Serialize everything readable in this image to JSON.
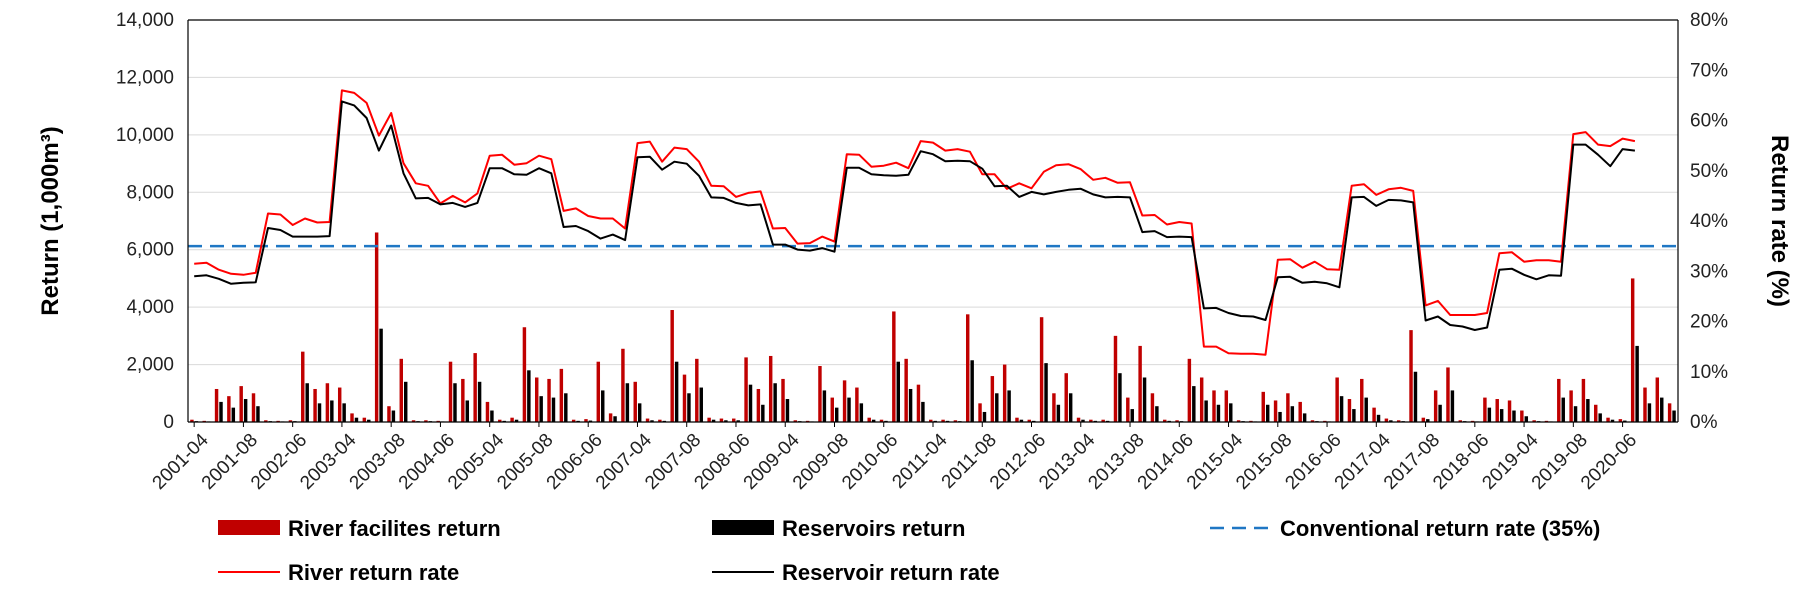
{
  "chart_data": {
    "type": "bar",
    "x_tick_labels": [
      "2001-04",
      "2001-08",
      "2002-06",
      "2003-04",
      "2003-08",
      "2004-06",
      "2005-04",
      "2005-08",
      "2006-06",
      "2007-04",
      "2007-08",
      "2008-06",
      "2009-04",
      "2009-08",
      "2010-06",
      "2011-04",
      "2011-08",
      "2012-06",
      "2013-04",
      "2013-08",
      "2014-06",
      "2015-04",
      "2015-08",
      "2016-06",
      "2017-04",
      "2017-08",
      "2018-06",
      "2019-04",
      "2019-08",
      "2020-06"
    ],
    "ylabel_left": "Return (1,000m³)",
    "ylabel_right": "Return rate (%)",
    "ylim_left": [
      0,
      14000
    ],
    "ylim_right": [
      0,
      80
    ],
    "yticks_left": [
      "0",
      "2,000",
      "4,000",
      "6,000",
      "8,000",
      "10,000",
      "12,000",
      "14,000"
    ],
    "yticks_right": [
      "0%",
      "10%",
      "20%",
      "30%",
      "40%",
      "50%",
      "60%",
      "70%",
      "80%"
    ],
    "grid": true,
    "legend_position": "bottom",
    "series": [
      {
        "name": "River facilites return",
        "kind": "bar",
        "axis": "left",
        "color": "#c00000",
        "values": [
          80,
          40,
          1150,
          900,
          1250,
          1000,
          60,
          40,
          60,
          2450,
          1150,
          1350,
          1200,
          300,
          150,
          6600,
          550,
          2200,
          60,
          60,
          40,
          2100,
          1500,
          2400,
          700,
          80,
          150,
          3300,
          1550,
          1500,
          1850,
          80,
          100,
          2100,
          300,
          2550,
          1400,
          120,
          80,
          3900,
          1650,
          2200,
          150,
          120,
          120,
          2250,
          1150,
          2300,
          1500,
          60,
          40,
          1950,
          850,
          1450,
          1200,
          150,
          80,
          3850,
          2200,
          1300,
          80,
          80,
          60,
          3750,
          650,
          1600,
          2000,
          150,
          80,
          3650,
          1000,
          1700,
          150,
          80,
          80,
          3000,
          850,
          2650,
          1000,
          80,
          60,
          2200,
          1550,
          1100,
          1100,
          60,
          40,
          1050,
          750,
          1000,
          700,
          60,
          40,
          1550,
          800,
          1500,
          500,
          120,
          60,
          3200,
          150,
          1100,
          1900,
          60,
          40,
          850,
          800,
          750,
          400,
          60,
          40,
          1500,
          1100,
          1500,
          600,
          150,
          100,
          5000,
          1200,
          1550,
          650
        ]
      },
      {
        "name": "Reservoirs return",
        "kind": "bar",
        "axis": "left",
        "color": "#000000",
        "values": [
          30,
          20,
          700,
          500,
          800,
          550,
          30,
          20,
          30,
          1350,
          650,
          750,
          650,
          150,
          80,
          3250,
          400,
          1400,
          30,
          30,
          20,
          1350,
          750,
          1400,
          400,
          40,
          80,
          1800,
          900,
          850,
          1000,
          40,
          50,
          1100,
          200,
          1350,
          650,
          60,
          40,
          2100,
          1000,
          1200,
          80,
          60,
          60,
          1300,
          600,
          1350,
          800,
          30,
          20,
          1100,
          500,
          850,
          650,
          80,
          40,
          2100,
          1150,
          700,
          40,
          40,
          30,
          2150,
          350,
          1000,
          1100,
          80,
          40,
          2050,
          600,
          1000,
          80,
          40,
          40,
          1700,
          450,
          1550,
          550,
          40,
          30,
          1250,
          750,
          600,
          650,
          30,
          20,
          600,
          350,
          550,
          300,
          30,
          20,
          900,
          450,
          850,
          250,
          60,
          30,
          1750,
          100,
          600,
          1100,
          30,
          20,
          500,
          450,
          400,
          200,
          30,
          20,
          850,
          550,
          800,
          300,
          80,
          50,
          2650,
          650,
          850,
          400
        ]
      },
      {
        "name": "Conventional return rate (35%)",
        "kind": "hline",
        "axis": "right",
        "color": "#1f77c4",
        "value": 35
      },
      {
        "name": "River return rate",
        "kind": "line",
        "axis": "right",
        "color": "#ff0000",
        "values": [
          31.5,
          31.7,
          30.3,
          29.5,
          29.3,
          29.7,
          41.5,
          41.3,
          39.2,
          40.5,
          39.7,
          39.8,
          66.0,
          65.5,
          63.5,
          57.0,
          61.5,
          51.5,
          47.5,
          47.0,
          43.5,
          45.0,
          43.7,
          45.5,
          53.0,
          53.2,
          51.2,
          51.5,
          53.0,
          52.3,
          42.0,
          42.5,
          41.0,
          40.5,
          40.5,
          38.5,
          55.5,
          55.8,
          51.8,
          54.6,
          54.3,
          51.8,
          47.0,
          46.9,
          44.8,
          45.6,
          45.9,
          38.5,
          38.6,
          35.5,
          35.6,
          36.9,
          35.9,
          53.3,
          53.2,
          50.8,
          51.0,
          51.6,
          50.5,
          55.9,
          55.6,
          54.0,
          54.3,
          53.8,
          49.3,
          49.3,
          46.4,
          47.5,
          46.5,
          49.8,
          51.1,
          51.3,
          50.3,
          48.2,
          48.6,
          47.6,
          47.7,
          41.1,
          41.2,
          39.3,
          39.8,
          39.5,
          15.0,
          15.0,
          13.7,
          13.6,
          13.6,
          13.4,
          32.3,
          32.4,
          30.7,
          31.9,
          30.4,
          30.3,
          47.0,
          47.3,
          45.2,
          46.3,
          46.6,
          46.0,
          23.2,
          24.1,
          21.3,
          21.3,
          21.3,
          21.7,
          33.6,
          33.8,
          31.9,
          32.2,
          32.2,
          31.9,
          57.3,
          57.7,
          55.2,
          54.9,
          56.4,
          55.9
        ]
      },
      {
        "name": "Reservoir return rate",
        "kind": "line",
        "axis": "right",
        "color": "#000000",
        "values": [
          29.0,
          29.2,
          28.5,
          27.5,
          27.7,
          27.8,
          38.6,
          38.2,
          36.9,
          36.9,
          36.9,
          37.0,
          63.8,
          63.0,
          60.5,
          54.0,
          59.0,
          49.5,
          44.5,
          44.6,
          43.3,
          43.6,
          42.8,
          43.6,
          50.5,
          50.5,
          49.3,
          49.2,
          50.5,
          49.5,
          38.8,
          39.0,
          38.0,
          36.5,
          37.3,
          36.2,
          52.7,
          52.8,
          50.2,
          51.8,
          51.4,
          49.0,
          44.7,
          44.6,
          43.6,
          43.1,
          43.3,
          35.3,
          35.3,
          34.3,
          34.1,
          34.6,
          33.9,
          50.6,
          50.6,
          49.3,
          49.1,
          49.0,
          49.2,
          53.9,
          53.3,
          51.9,
          52.0,
          51.9,
          50.4,
          46.9,
          47.0,
          44.8,
          45.8,
          45.3,
          45.8,
          46.2,
          46.4,
          45.3,
          44.7,
          44.8,
          44.7,
          37.8,
          38.0,
          36.8,
          36.9,
          36.8,
          22.6,
          22.7,
          21.7,
          21.1,
          21.0,
          20.3,
          28.8,
          28.9,
          27.7,
          27.9,
          27.6,
          26.8,
          44.7,
          44.8,
          43.0,
          44.2,
          44.1,
          43.7,
          20.2,
          21.0,
          19.3,
          19.0,
          18.3,
          18.8,
          30.3,
          30.5,
          29.3,
          28.4,
          29.2,
          29.1,
          55.2,
          55.2,
          53.2,
          50.9,
          54.3,
          54.0
        ]
      }
    ]
  },
  "legend": [
    {
      "label": "River facilites return",
      "symbol": "bar",
      "color": "#c00000"
    },
    {
      "label": "Reservoirs return",
      "symbol": "bar",
      "color": "#000000"
    },
    {
      "label": "Conventional return rate (35%)",
      "symbol": "dash",
      "color": "#1f77c4"
    },
    {
      "label": "River return rate",
      "symbol": "line",
      "color": "#ff0000"
    },
    {
      "label": "Reservoir return rate",
      "symbol": "line",
      "color": "#000000"
    }
  ]
}
